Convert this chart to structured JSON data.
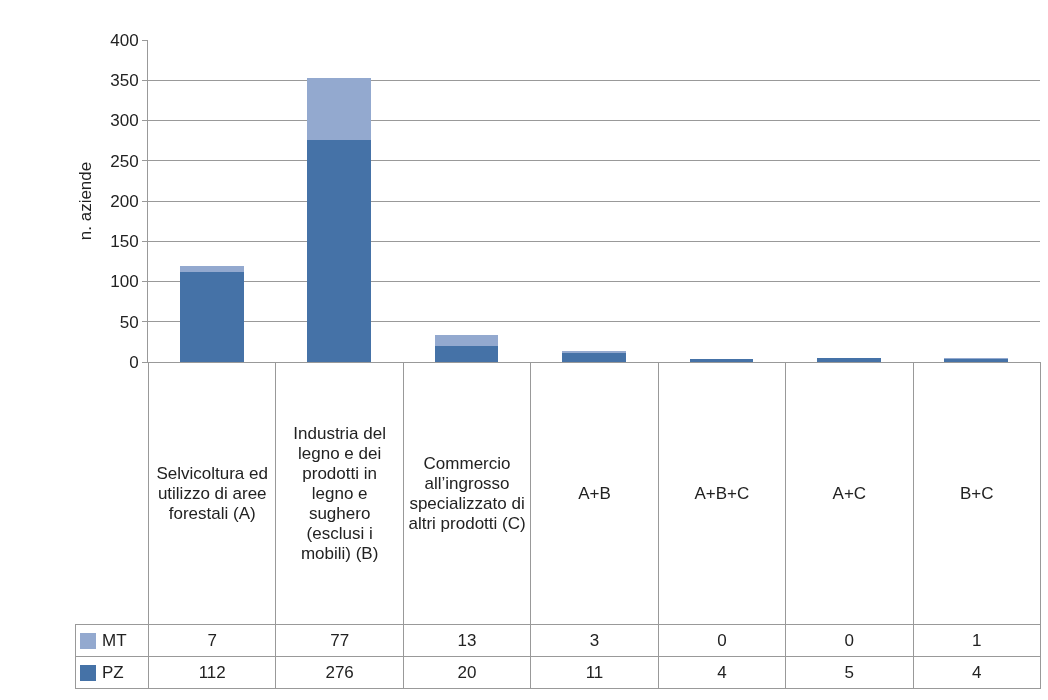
{
  "chart_data": {
    "type": "bar",
    "ylabel": "n. aziende",
    "categories": [
      "Selvicoltura ed utilizzo di aree forestali (A)",
      "Industria del legno e dei prodotti in legno e sughero (esclusi i mobili) (B)",
      "Commercio all’ingrosso specializzato di altri prodotti (C)",
      "A+B",
      "A+B+C",
      "A+C",
      "B+C"
    ],
    "series": [
      {
        "name": "PZ",
        "color": "#4572a7",
        "values": [
          112,
          276,
          20,
          11,
          4,
          5,
          4
        ]
      },
      {
        "name": "MT",
        "color": "#93a9cf",
        "values": [
          7,
          77,
          13,
          3,
          0,
          0,
          1
        ]
      }
    ],
    "stacked": true,
    "ylim": [
      0,
      400
    ],
    "yticks": [
      0,
      50,
      100,
      150,
      200,
      250,
      300,
      350,
      400
    ],
    "grid": "y",
    "legend": "bottom left",
    "data_labels": true,
    "tick_labels": "y"
  }
}
